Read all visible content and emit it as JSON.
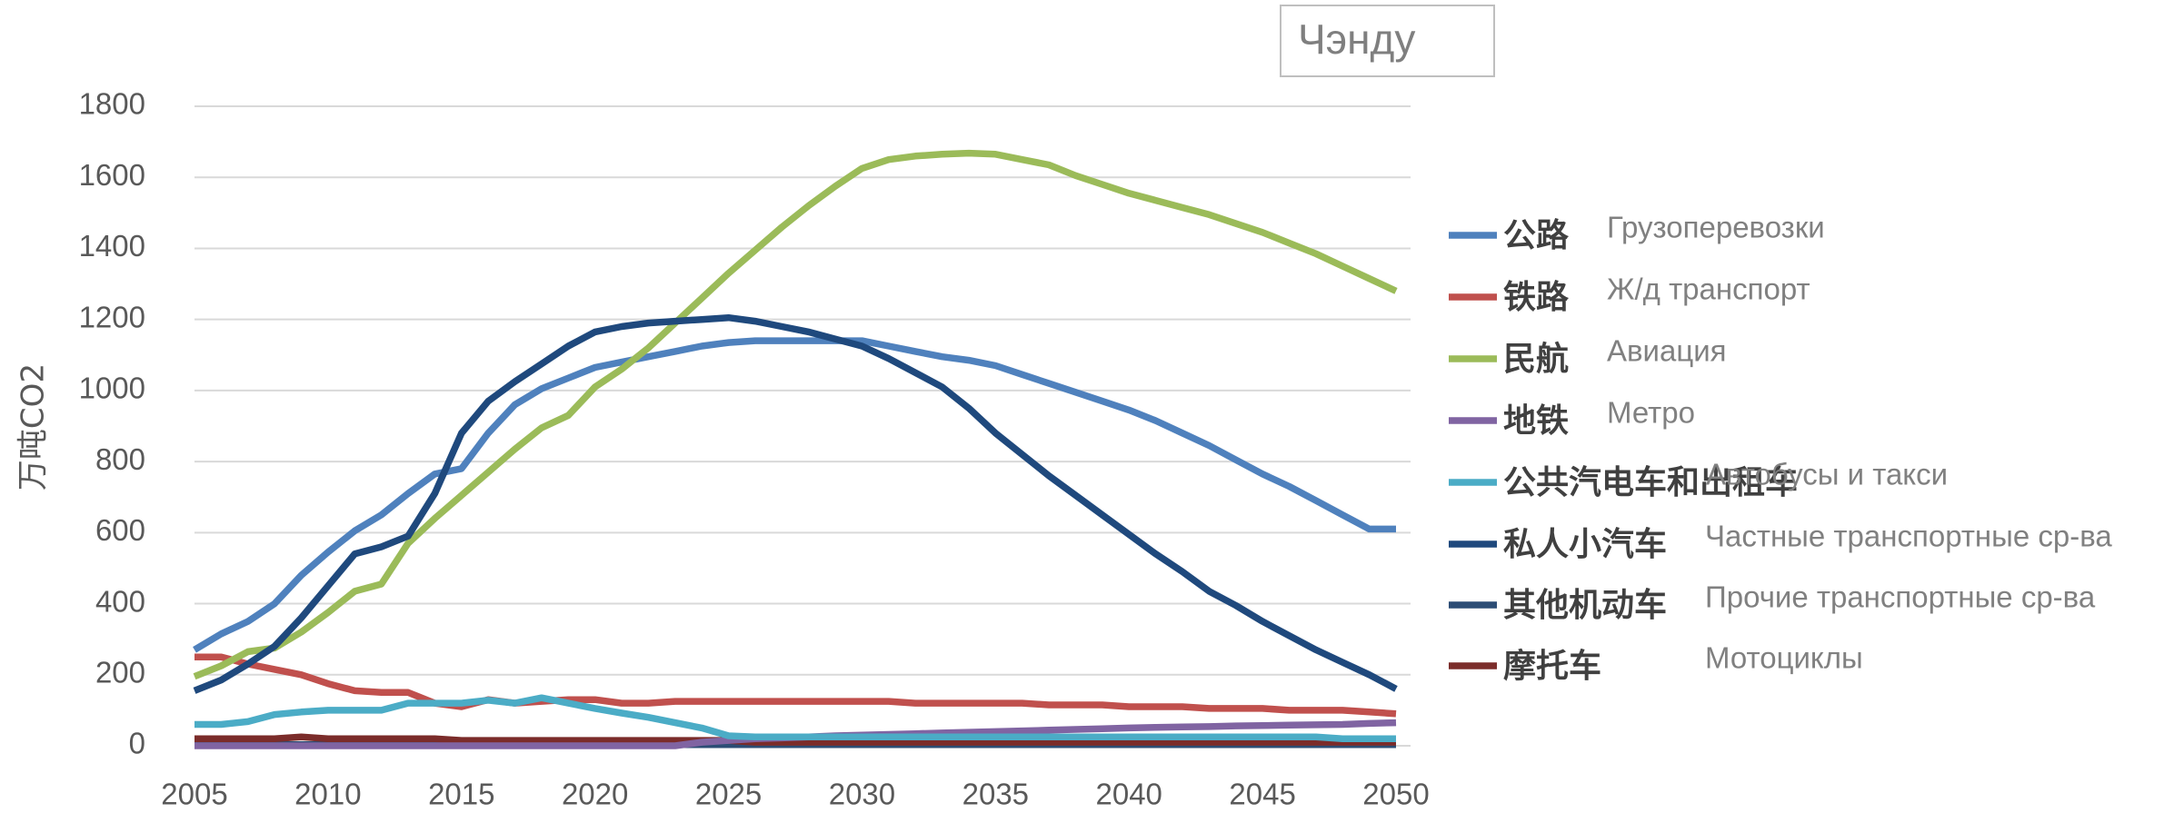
{
  "chart_data": {
    "type": "line",
    "title": "Чэнду",
    "y_label": "万吨CO2",
    "x": [
      2005,
      2006,
      2007,
      2008,
      2009,
      2010,
      2011,
      2012,
      2013,
      2014,
      2015,
      2016,
      2017,
      2018,
      2019,
      2020,
      2021,
      2022,
      2023,
      2024,
      2025,
      2026,
      2027,
      2028,
      2029,
      2030,
      2031,
      2032,
      2033,
      2034,
      2035,
      2036,
      2037,
      2038,
      2039,
      2040,
      2041,
      2042,
      2043,
      2044,
      2045,
      2046,
      2047,
      2048,
      2049,
      2050
    ],
    "xlim": [
      2005,
      2050
    ],
    "xticks": [
      2005,
      2010,
      2015,
      2020,
      2025,
      2030,
      2035,
      2040,
      2045,
      2050
    ],
    "ylim": [
      0,
      1800
    ],
    "yticks": [
      0,
      200,
      400,
      600,
      800,
      1000,
      1200,
      1400,
      1600,
      1800
    ],
    "grid": true,
    "series": [
      {
        "name": "公路",
        "label_ru": "Грузоперевозки",
        "color": "#4f81bd",
        "values": [
          270,
          315,
          350,
          400,
          480,
          545,
          605,
          650,
          710,
          765,
          780,
          880,
          960,
          1005,
          1035,
          1065,
          1080,
          1095,
          1110,
          1125,
          1135,
          1140,
          1140,
          1140,
          1140,
          1140,
          1125,
          1110,
          1095,
          1085,
          1070,
          1045,
          1020,
          995,
          970,
          945,
          915,
          880,
          845,
          805,
          765,
          730,
          690,
          650,
          610,
          610
        ]
      },
      {
        "name": "铁路",
        "label_ru": "Ж/д транспорт",
        "color": "#c0504d",
        "values": [
          250,
          250,
          230,
          215,
          200,
          175,
          155,
          150,
          150,
          120,
          110,
          130,
          120,
          125,
          130,
          130,
          120,
          120,
          125,
          125,
          125,
          125,
          125,
          125,
          125,
          125,
          125,
          120,
          120,
          120,
          120,
          120,
          115,
          115,
          115,
          110,
          110,
          110,
          105,
          105,
          105,
          100,
          100,
          100,
          95,
          90
        ]
      },
      {
        "name": "民航",
        "label_ru": "Авиация",
        "color": "#9bbb59",
        "values": [
          195,
          225,
          265,
          275,
          320,
          375,
          435,
          455,
          570,
          640,
          705,
          770,
          835,
          895,
          930,
          1010,
          1060,
          1120,
          1190,
          1260,
          1330,
          1395,
          1460,
          1520,
          1575,
          1625,
          1650,
          1660,
          1665,
          1668,
          1665,
          1650,
          1635,
          1605,
          1580,
          1555,
          1535,
          1515,
          1495,
          1470,
          1445,
          1415,
          1385,
          1350,
          1315,
          1280
        ]
      },
      {
        "name": "地铁",
        "label_ru": "Метро",
        "color": "#8064a2",
        "values": [
          0,
          0,
          0,
          0,
          0,
          0,
          0,
          0,
          0,
          0,
          0,
          0,
          0,
          0,
          0,
          0,
          0,
          0,
          0,
          10,
          15,
          20,
          22,
          25,
          28,
          30,
          32,
          34,
          36,
          38,
          40,
          42,
          44,
          46,
          48,
          50,
          52,
          53,
          54,
          56,
          57,
          58,
          59,
          60,
          63,
          65
        ]
      },
      {
        "name": "公共汽电车和出租车",
        "label_ru": "Автобусы и такси",
        "color": "#4bacc6",
        "values": [
          60,
          60,
          68,
          88,
          95,
          100,
          100,
          100,
          120,
          120,
          120,
          128,
          120,
          135,
          120,
          105,
          92,
          80,
          65,
          50,
          28,
          25,
          25,
          25,
          25,
          25,
          25,
          25,
          25,
          25,
          25,
          25,
          25,
          25,
          25,
          25,
          25,
          25,
          25,
          25,
          25,
          25,
          25,
          20,
          20,
          20
        ]
      },
      {
        "name": "私人小汽车",
        "label_ru": "Частные транспортные ср-ва",
        "color": "#1f497d",
        "values": [
          155,
          185,
          230,
          280,
          360,
          450,
          540,
          560,
          590,
          710,
          880,
          970,
          1025,
          1075,
          1125,
          1165,
          1180,
          1190,
          1195,
          1200,
          1205,
          1195,
          1180,
          1165,
          1145,
          1125,
          1090,
          1050,
          1010,
          950,
          880,
          820,
          760,
          705,
          650,
          595,
          540,
          490,
          435,
          395,
          350,
          310,
          270,
          235,
          200,
          160
        ]
      },
      {
        "name": "其他机动车",
        "label_ru": "Прочие транспортные ср-ва",
        "color": "#2c4d75",
        "values": [
          3,
          3,
          3,
          3,
          3,
          3,
          3,
          3,
          3,
          3,
          3,
          3,
          3,
          3,
          3,
          3,
          3,
          3,
          3,
          3,
          3,
          3,
          3,
          3,
          3,
          3,
          3,
          3,
          3,
          3,
          3,
          3,
          3,
          3,
          3,
          3,
          3,
          3,
          3,
          3,
          3,
          3,
          3,
          3,
          3,
          3
        ]
      },
      {
        "name": "摩托车",
        "label_ru": "Мотоциклы",
        "color": "#7b2c2a",
        "values": [
          20,
          20,
          20,
          20,
          25,
          20,
          20,
          20,
          20,
          20,
          15,
          15,
          15,
          15,
          15,
          15,
          15,
          15,
          15,
          15,
          15,
          10,
          10,
          10,
          10,
          10,
          10,
          10,
          10,
          10,
          10,
          10,
          10,
          10,
          10,
          10,
          10,
          10,
          10,
          10,
          10,
          10,
          10,
          10,
          10,
          10
        ]
      }
    ]
  }
}
